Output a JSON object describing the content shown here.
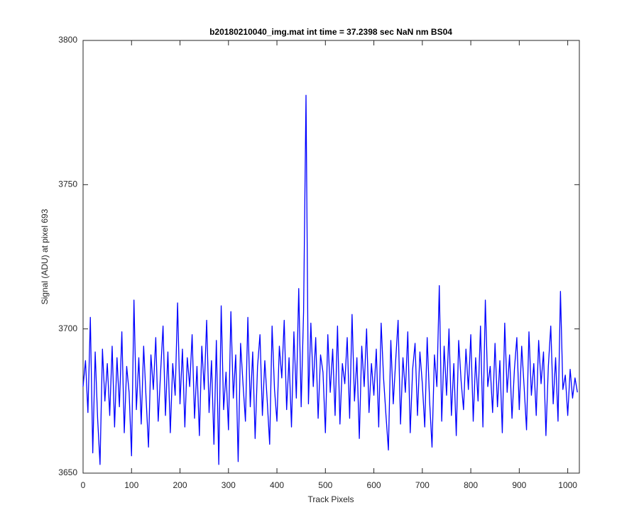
{
  "chart_data": {
    "type": "line",
    "title": "b20180210040_img.mat int time = 37.2398 sec  NaN nm BS04",
    "xlabel": "Track Pixels",
    "ylabel": "Signal (ADU) at pixel 693",
    "xlim": [
      0,
      1024
    ],
    "ylim": [
      3650,
      3800
    ],
    "xticks": [
      0,
      100,
      200,
      300,
      400,
      500,
      600,
      700,
      800,
      900,
      1000
    ],
    "yticks": [
      3650,
      3700,
      3750,
      3800
    ],
    "grid": false,
    "x": [
      0,
      5,
      10,
      15,
      20,
      25,
      30,
      35,
      40,
      45,
      50,
      55,
      60,
      65,
      70,
      75,
      80,
      85,
      90,
      95,
      100,
      105,
      110,
      115,
      120,
      125,
      130,
      135,
      140,
      145,
      150,
      155,
      160,
      165,
      170,
      175,
      180,
      185,
      190,
      195,
      200,
      205,
      210,
      215,
      220,
      225,
      230,
      235,
      240,
      245,
      250,
      255,
      260,
      265,
      270,
      275,
      280,
      285,
      290,
      295,
      300,
      305,
      310,
      315,
      320,
      325,
      330,
      335,
      340,
      345,
      350,
      355,
      360,
      365,
      370,
      375,
      380,
      385,
      390,
      395,
      400,
      405,
      410,
      415,
      420,
      425,
      430,
      435,
      440,
      445,
      450,
      455,
      460,
      465,
      470,
      475,
      480,
      485,
      490,
      495,
      500,
      505,
      510,
      515,
      520,
      525,
      530,
      535,
      540,
      545,
      550,
      555,
      560,
      565,
      570,
      575,
      580,
      585,
      590,
      595,
      600,
      605,
      610,
      615,
      620,
      625,
      630,
      635,
      640,
      645,
      650,
      655,
      660,
      665,
      670,
      675,
      680,
      685,
      690,
      695,
      700,
      705,
      710,
      715,
      720,
      725,
      730,
      735,
      740,
      745,
      750,
      755,
      760,
      765,
      770,
      775,
      780,
      785,
      790,
      795,
      800,
      805,
      810,
      815,
      820,
      825,
      830,
      835,
      840,
      845,
      850,
      855,
      860,
      865,
      870,
      875,
      880,
      885,
      890,
      895,
      900,
      905,
      910,
      915,
      920,
      925,
      930,
      935,
      940,
      945,
      950,
      955,
      960,
      965,
      970,
      975,
      980,
      985,
      990,
      995,
      1000,
      1005,
      1010,
      1015,
      1020
    ],
    "series": [
      {
        "color": "#0000ff",
        "values": [
          3680,
          3689,
          3671,
          3704,
          3657,
          3692,
          3669,
          3653,
          3693,
          3675,
          3688,
          3670,
          3694,
          3666,
          3690,
          3673,
          3699,
          3664,
          3687,
          3678,
          3656,
          3710,
          3672,
          3690,
          3667,
          3694,
          3676,
          3659,
          3691,
          3679,
          3697,
          3668,
          3685,
          3701,
          3670,
          3692,
          3664,
          3688,
          3677,
          3709,
          3674,
          3693,
          3666,
          3690,
          3680,
          3698,
          3669,
          3687,
          3663,
          3694,
          3679,
          3703,
          3671,
          3689,
          3660,
          3696,
          3653,
          3708,
          3672,
          3685,
          3665,
          3706,
          3676,
          3691,
          3654,
          3695,
          3681,
          3668,
          3704,
          3673,
          3692,
          3662,
          3687,
          3698,
          3670,
          3689,
          3675,
          3660,
          3701,
          3679,
          3668,
          3694,
          3683,
          3703,
          3672,
          3690,
          3666,
          3699,
          3676,
          3714,
          3673,
          3706,
          3781,
          3674,
          3702,
          3680,
          3697,
          3669,
          3691,
          3685,
          3664,
          3698,
          3678,
          3693,
          3670,
          3701,
          3667,
          3688,
          3681,
          3697,
          3669,
          3705,
          3675,
          3690,
          3662,
          3694,
          3680,
          3700,
          3671,
          3688,
          3677,
          3693,
          3666,
          3702,
          3683,
          3670,
          3658,
          3696,
          3674,
          3689,
          3703,
          3667,
          3690,
          3678,
          3699,
          3664,
          3686,
          3695,
          3670,
          3692,
          3681,
          3666,
          3697,
          3675,
          3659,
          3691,
          3680,
          3715,
          3668,
          3694,
          3677,
          3700,
          3670,
          3688,
          3663,
          3696,
          3682,
          3672,
          3693,
          3679,
          3698,
          3668,
          3690,
          3675,
          3701,
          3666,
          3710,
          3680,
          3687,
          3671,
          3695,
          3673,
          3689,
          3664,
          3702,
          3678,
          3691,
          3669,
          3686,
          3697,
          3672,
          3694,
          3680,
          3665,
          3699,
          3677,
          3688,
          3670,
          3696,
          3681,
          3692,
          3663,
          3687,
          3701,
          3674,
          3690,
          3668,
          3713,
          3679,
          3684,
          3670,
          3686,
          3676,
          3683,
          3678
        ]
      }
    ]
  }
}
